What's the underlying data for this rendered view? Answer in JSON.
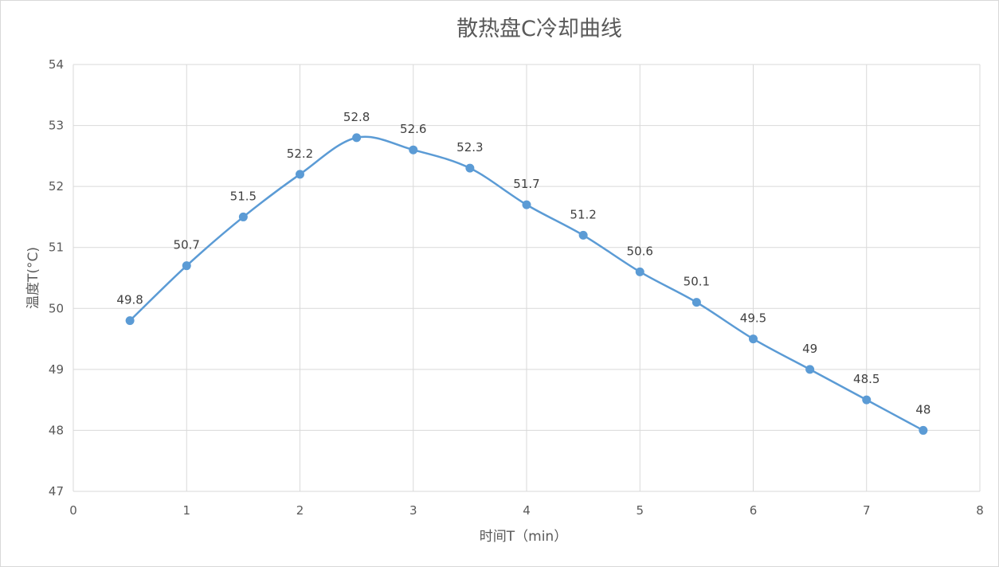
{
  "chart_data": {
    "type": "line",
    "title": "散热盘C冷却曲线",
    "xlabel": "时间T（min）",
    "ylabel": "温度T(°C)",
    "xlim": [
      0,
      8
    ],
    "ylim": [
      47,
      54
    ],
    "x_ticks": [
      0,
      1,
      2,
      3,
      4,
      5,
      6,
      7,
      8
    ],
    "y_ticks": [
      47,
      48,
      49,
      50,
      51,
      52,
      53,
      54
    ],
    "grid": true,
    "smooth": true,
    "legend": "none",
    "series": [
      {
        "color": "#5B9BD5",
        "points": [
          {
            "x": 0.5,
            "y": 49.8,
            "label": "49.8"
          },
          {
            "x": 1,
            "y": 50.7,
            "label": "50.7"
          },
          {
            "x": 1.5,
            "y": 51.5,
            "label": "51.5"
          },
          {
            "x": 2,
            "y": 52.2,
            "label": "52.2"
          },
          {
            "x": 2.5,
            "y": 52.8,
            "label": "52.8"
          },
          {
            "x": 3,
            "y": 52.6,
            "label": "52.6"
          },
          {
            "x": 3.5,
            "y": 52.3,
            "label": "52.3"
          },
          {
            "x": 4,
            "y": 51.7,
            "label": "51.7"
          },
          {
            "x": 4.5,
            "y": 51.2,
            "label": "51.2"
          },
          {
            "x": 5,
            "y": 50.6,
            "label": "50.6"
          },
          {
            "x": 5.5,
            "y": 50.1,
            "label": "50.1"
          },
          {
            "x": 6,
            "y": 49.5,
            "label": "49.5"
          },
          {
            "x": 6.5,
            "y": 49,
            "label": "49"
          },
          {
            "x": 7,
            "y": 48.5,
            "label": "48.5"
          },
          {
            "x": 7.5,
            "y": 48,
            "label": "48"
          }
        ]
      }
    ],
    "colors": {
      "grid": "#d9d9d9",
      "text": "#595959",
      "label_text": "#404040"
    }
  }
}
